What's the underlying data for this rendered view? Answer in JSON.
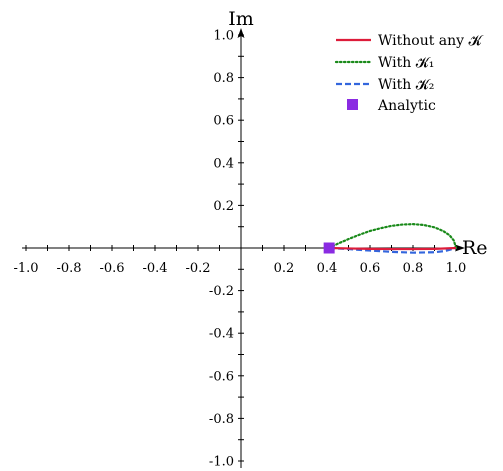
{
  "chart_data": {
    "type": "line",
    "xlabel": "Re",
    "ylabel": "Im",
    "xlim": [
      -1.0,
      1.0
    ],
    "ylim": [
      -1.0,
      1.0
    ],
    "grid": false,
    "legend_placement": "top-right",
    "x_ticks": [
      -1.0,
      -0.9,
      -0.8,
      -0.7,
      -0.6,
      -0.5,
      -0.4,
      -0.3,
      -0.2,
      -0.1,
      0.1,
      0.2,
      0.3,
      0.4,
      0.5,
      0.6,
      0.7,
      0.8,
      0.9,
      1.0
    ],
    "x_tick_labels": [
      {
        "value": -1.0,
        "text": "-1.0"
      },
      {
        "value": -0.8,
        "text": "-0.8"
      },
      {
        "value": -0.6,
        "text": "-0.6"
      },
      {
        "value": -0.4,
        "text": "-0.4"
      },
      {
        "value": -0.2,
        "text": "-0.2"
      },
      {
        "value": 0.2,
        "text": "0.2"
      },
      {
        "value": 0.4,
        "text": "0.4"
      },
      {
        "value": 0.6,
        "text": "0.6"
      },
      {
        "value": 0.8,
        "text": "0.8"
      },
      {
        "value": 1.0,
        "text": "1.0"
      }
    ],
    "y_ticks": [
      -1.0,
      -0.9,
      -0.8,
      -0.7,
      -0.6,
      -0.5,
      -0.4,
      -0.3,
      -0.2,
      -0.1,
      0.1,
      0.2,
      0.3,
      0.4,
      0.5,
      0.6,
      0.7,
      0.8,
      0.9,
      1.0
    ],
    "y_tick_labels": [
      {
        "value": 1.0,
        "text": "1.0"
      },
      {
        "value": 0.8,
        "text": "0.8"
      },
      {
        "value": 0.6,
        "text": "0.6"
      },
      {
        "value": 0.4,
        "text": "0.4"
      },
      {
        "value": 0.2,
        "text": "0.2"
      },
      {
        "value": -0.2,
        "text": "-0.2"
      },
      {
        "value": -0.4,
        "text": "-0.4"
      },
      {
        "value": -0.6,
        "text": "-0.6"
      },
      {
        "value": -0.8,
        "text": "-0.8"
      },
      {
        "value": -1.0,
        "text": "-1.0"
      }
    ],
    "series": [
      {
        "name": "Without any 𝓚",
        "color": "#dd1c3a",
        "style": "solid",
        "x": [
          0.41,
          0.5,
          0.6,
          0.7,
          0.8,
          0.9,
          1.0
        ],
        "y": [
          0.0,
          -0.002,
          -0.004,
          -0.005,
          -0.005,
          -0.004,
          0.0
        ]
      },
      {
        "name": "With 𝓚₁",
        "color": "#1a8a1a",
        "style": "dotted",
        "x": [
          0.41,
          0.45,
          0.5,
          0.55,
          0.6,
          0.65,
          0.7,
          0.75,
          0.8,
          0.85,
          0.9,
          0.94,
          0.97,
          0.99,
          1.0
        ],
        "y": [
          0.0,
          0.02,
          0.042,
          0.062,
          0.08,
          0.093,
          0.104,
          0.11,
          0.112,
          0.108,
          0.097,
          0.08,
          0.06,
          0.035,
          0.0
        ]
      },
      {
        "name": "With 𝓚₂",
        "color": "#3366dd",
        "style": "dashed",
        "x": [
          0.41,
          0.5,
          0.6,
          0.7,
          0.8,
          0.9,
          0.95,
          1.0
        ],
        "y": [
          0.0,
          -0.005,
          -0.012,
          -0.018,
          -0.022,
          -0.02,
          -0.014,
          0.0
        ]
      },
      {
        "name": "Analytic",
        "color": "#8a2be2",
        "style": "marker-square",
        "x": [
          0.41
        ],
        "y": [
          0.0
        ]
      }
    ]
  }
}
